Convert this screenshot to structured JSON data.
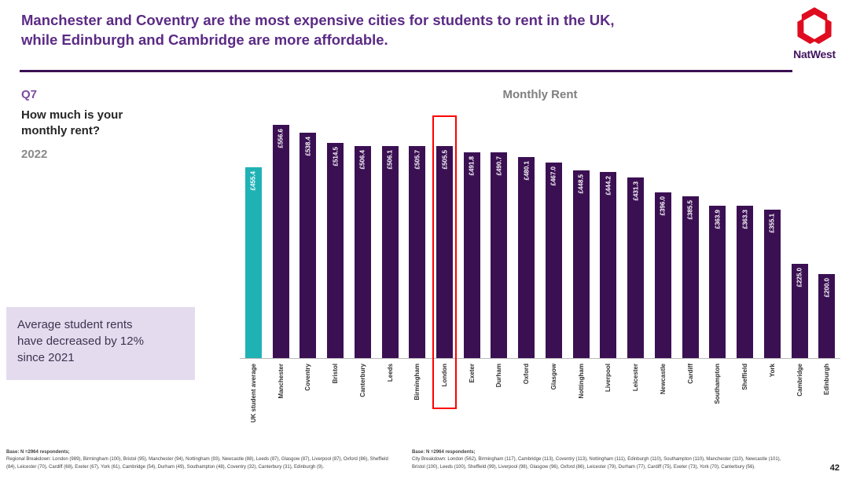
{
  "header": {
    "title_line1": "Manchester and Coventry are the most expensive cities for students to rent in the UK,",
    "title_line2": "while Edinburgh and Cambridge are more affordable.",
    "brand": "NatWest"
  },
  "question_panel": {
    "number": "Q7",
    "question": "How much is your monthly rent?",
    "year": "2022",
    "callout": "Average student rents have decreased by 12% since 2021"
  },
  "chart_data": {
    "type": "bar",
    "title": "Monthly Rent",
    "categories": [
      "UK student average",
      "Manchester",
      "Coventry",
      "Bristol",
      "Canterbury",
      "Leeds",
      "Birmingham",
      "London",
      "Exeter",
      "Durham",
      "Oxford",
      "Glasgow",
      "Nottingham",
      "Liverpool",
      "Leicester",
      "Newcastle",
      "Cardiff",
      "Southampton",
      "Sheffield",
      "York",
      "Cambridge",
      "Edinburgh"
    ],
    "values": [
      455.4,
      556.6,
      538.4,
      514.5,
      506.4,
      506.1,
      505.7,
      505.5,
      491.8,
      490.7,
      480.1,
      467.0,
      448.5,
      444.2,
      431.3,
      396.0,
      385.5,
      363.9,
      363.3,
      355.1,
      225.0,
      200.0
    ],
    "value_prefix": "£",
    "highlighted_category": "London",
    "ylim": [
      0,
      600
    ],
    "grid": false,
    "legend": "none",
    "colors": {
      "default_bar": "#3b1053",
      "uk_average_bar": "#1fb2b5",
      "highlight_outline": "#fe0000"
    }
  },
  "footer": {
    "left_note_bold": "Base: N =2964 respondents;",
    "left_note": "Regional Breakdown: London (989), Birmingham (100), Bristol (95), Manchester (94), Nottingham (93), Newcastle (88), Leeds (87), Glasgow (87), Liverpool (87), Oxford (86), Sheffield (84), Leicester (70), Cardiff (68), Exeter (67), York (61), Cambridge (54), Durham (49), Southampton (48), Coventry (32), Canterbury (31), Edinburgh (9).",
    "right_note_bold": "Base: N =2964 respondents;",
    "right_note": "City Breakdown: London (562), Birmingham (117), Cambridge (113), Coventry (113), Nottingham (111), Edinburgh (110), Southampton (110), Manchester (110), Newcastle (101), Bristol (100), Leeds (100), Sheffield (99), Liverpool (98), Glasgow (96), Oxford (86), Leicester (79), Durham (77), Cardiff (75), Exeter (73), York (70), Canterbury (56).",
    "page_number": "42"
  }
}
